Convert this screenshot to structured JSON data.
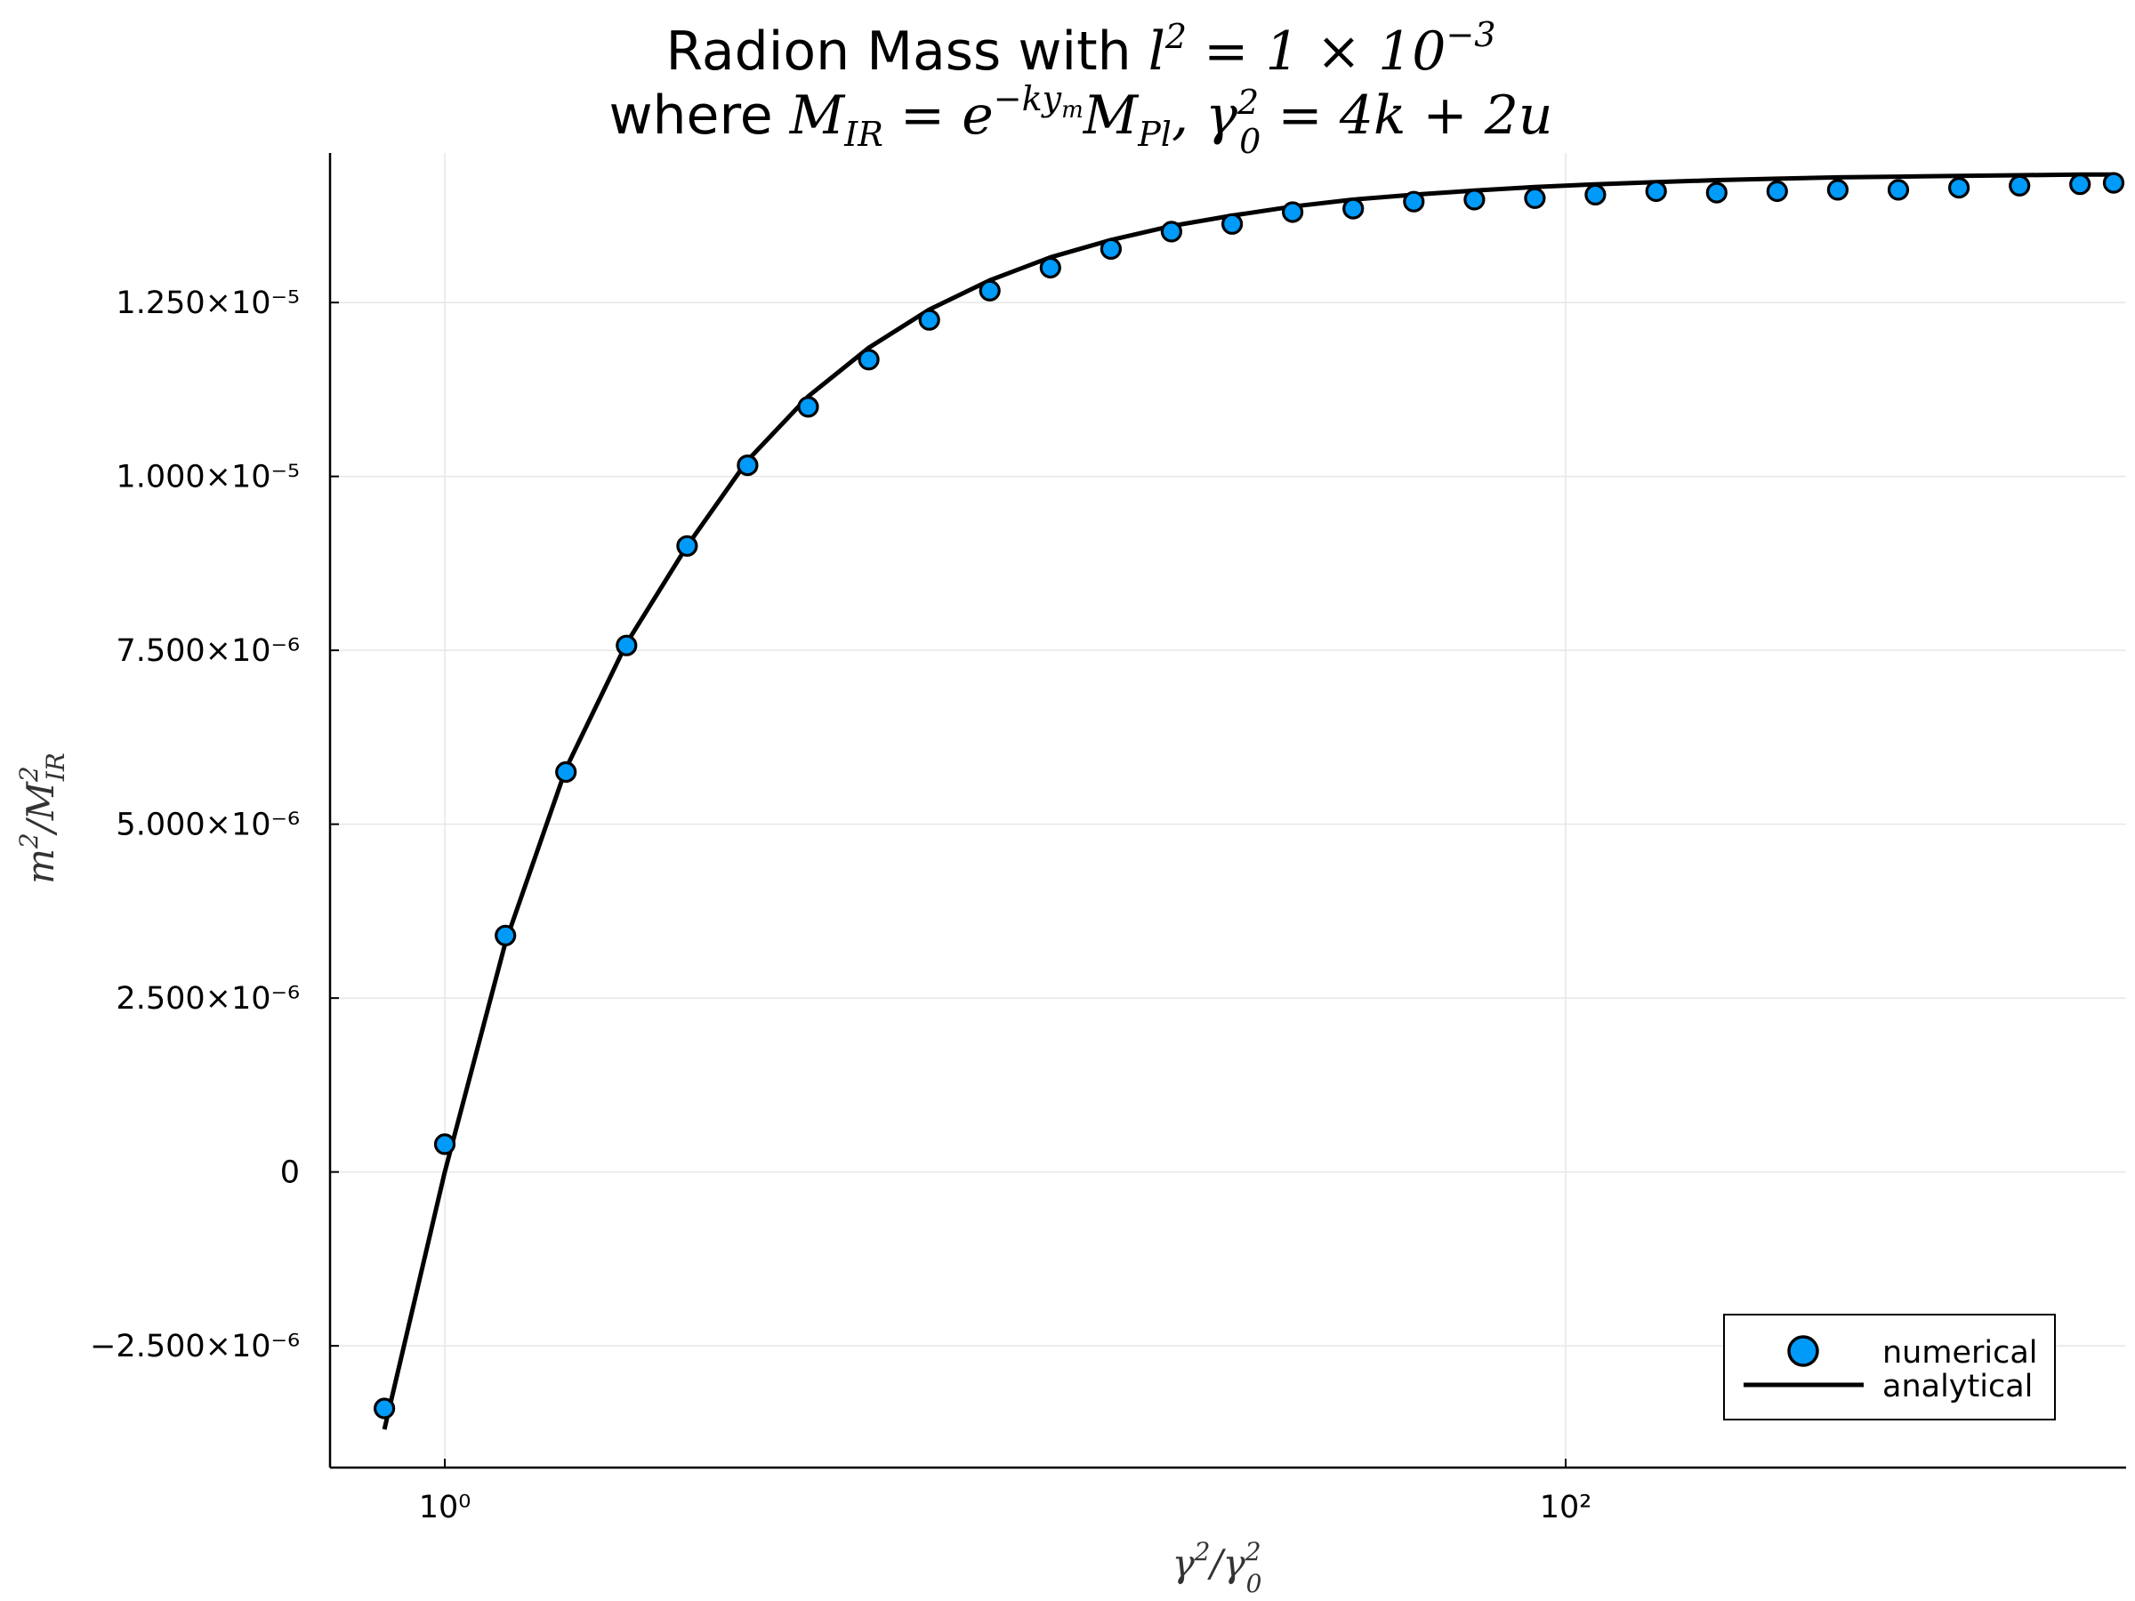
{
  "chart_data": {
    "type": "scatter",
    "title": {
      "line1": "Radion Mass with l² = 1 × 10⁻³",
      "line2": "where M_IR = e^(−k y_m) M_Pl,   γ₀² = 4k + 2u"
    },
    "xlabel": "γ²/γ₀²",
    "ylabel": "m²/M_IR²",
    "xscale": "log",
    "xlim": [
      0.624,
      1000
    ],
    "ylim": [
      -4.25e-06,
      1.465e-05
    ],
    "grid": true,
    "x_tick_labels": [
      {
        "x": 1,
        "label": "10⁰"
      },
      {
        "x": 100,
        "label": "10²"
      }
    ],
    "y_tick_labels": [
      {
        "y": -2.5e-06,
        "label": "−2.500×10⁻⁶"
      },
      {
        "y": 0,
        "label": "0"
      },
      {
        "y": 2.5e-06,
        "label": "2.500×10⁻⁶"
      },
      {
        "y": 5e-06,
        "label": "5.000×10⁻⁶"
      },
      {
        "y": 7.5e-06,
        "label": "7.500×10⁻⁶"
      },
      {
        "y": 1e-05,
        "label": "1.000×10⁻⁵"
      },
      {
        "y": 1.25e-05,
        "label": "1.250×10⁻⁵"
      }
    ],
    "legend_position": "bottom-right",
    "series": [
      {
        "name": "numerical",
        "kind": "scatter",
        "color": "#009af9",
        "points": [
          {
            "x": 0.78,
            "y": -3.4e-06
          },
          {
            "x": 1.0,
            "y": 4e-07
          },
          {
            "x": 1.283,
            "y": 3.4e-06
          },
          {
            "x": 1.645,
            "y": 5.75e-06
          },
          {
            "x": 2.11,
            "y": 7.57e-06
          },
          {
            "x": 2.706,
            "y": 9e-06
          },
          {
            "x": 3.47,
            "y": 1.016e-05
          },
          {
            "x": 4.45,
            "y": 1.1e-05
          },
          {
            "x": 5.707,
            "y": 1.168e-05
          },
          {
            "x": 7.32,
            "y": 1.225e-05
          },
          {
            "x": 9.388,
            "y": 1.267e-05
          },
          {
            "x": 12.04,
            "y": 1.3e-05
          },
          {
            "x": 15.44,
            "y": 1.327e-05
          },
          {
            "x": 19.8,
            "y": 1.352e-05
          },
          {
            "x": 25.4,
            "y": 1.363e-05
          },
          {
            "x": 32.57,
            "y": 1.38e-05
          },
          {
            "x": 41.78,
            "y": 1.385e-05
          },
          {
            "x": 53.58,
            "y": 1.395e-05
          },
          {
            "x": 68.72,
            "y": 1.398e-05
          },
          {
            "x": 88.13,
            "y": 1.4e-05
          },
          {
            "x": 113.0,
            "y": 1.405e-05
          },
          {
            "x": 145.0,
            "y": 1.41e-05
          },
          {
            "x": 186.0,
            "y": 1.408e-05
          },
          {
            "x": 238.5,
            "y": 1.41e-05
          },
          {
            "x": 305.9,
            "y": 1.412e-05
          },
          {
            "x": 392.3,
            "y": 1.412e-05
          },
          {
            "x": 503.2,
            "y": 1.415e-05
          },
          {
            "x": 645.3,
            "y": 1.418e-05
          },
          {
            "x": 827.6,
            "y": 1.42e-05
          },
          {
            "x": 950.0,
            "y": 1.422e-05
          }
        ]
      },
      {
        "name": "analytical",
        "kind": "line",
        "color": "#000000",
        "points": [
          {
            "x": 0.78,
            "y": -3.7e-06
          },
          {
            "x": 1.0,
            "y": 0.0
          },
          {
            "x": 1.283,
            "y": 3.3e-06
          },
          {
            "x": 1.645,
            "y": 5.8e-06
          },
          {
            "x": 2.11,
            "y": 7.6e-06
          },
          {
            "x": 2.706,
            "y": 9e-06
          },
          {
            "x": 3.47,
            "y": 1.023e-05
          },
          {
            "x": 4.45,
            "y": 1.115e-05
          },
          {
            "x": 5.707,
            "y": 1.185e-05
          },
          {
            "x": 7.32,
            "y": 1.24e-05
          },
          {
            "x": 9.388,
            "y": 1.282e-05
          },
          {
            "x": 12.04,
            "y": 1.315e-05
          },
          {
            "x": 15.44,
            "y": 1.34e-05
          },
          {
            "x": 19.8,
            "y": 1.36e-05
          },
          {
            "x": 25.4,
            "y": 1.375e-05
          },
          {
            "x": 32.57,
            "y": 1.388e-05
          },
          {
            "x": 41.78,
            "y": 1.398e-05
          },
          {
            "x": 53.58,
            "y": 1.405e-05
          },
          {
            "x": 68.72,
            "y": 1.411e-05
          },
          {
            "x": 88.13,
            "y": 1.416e-05
          },
          {
            "x": 113.0,
            "y": 1.42e-05
          },
          {
            "x": 145.0,
            "y": 1.423e-05
          },
          {
            "x": 186.0,
            "y": 1.426e-05
          },
          {
            "x": 238.5,
            "y": 1.428e-05
          },
          {
            "x": 305.9,
            "y": 1.43e-05
          },
          {
            "x": 392.3,
            "y": 1.431e-05
          },
          {
            "x": 503.2,
            "y": 1.432e-05
          },
          {
            "x": 645.3,
            "y": 1.433e-05
          },
          {
            "x": 827.6,
            "y": 1.434e-05
          },
          {
            "x": 950.0,
            "y": 1.434e-05
          }
        ]
      }
    ]
  }
}
